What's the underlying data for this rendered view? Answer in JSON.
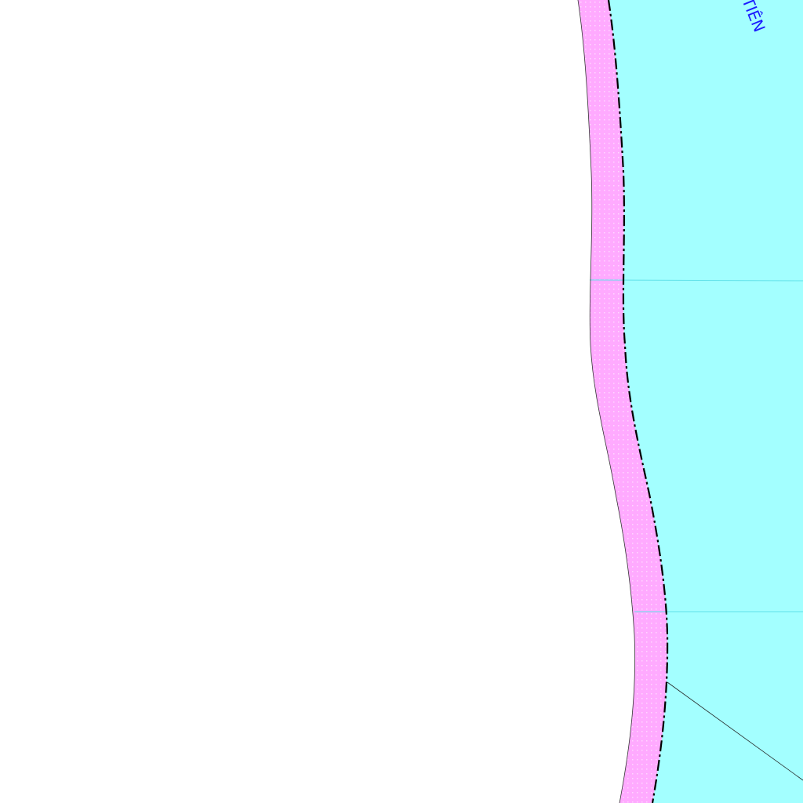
{
  "map": {
    "labels": {
      "river_name_fragment": "TIÊN"
    },
    "colors": {
      "background": "#ffffff",
      "water": "#a3ffff",
      "bank_strip": "#ffaaff",
      "bank_strip_dots": "#ffdcff",
      "grid_line": "#5fe0e8",
      "boundary_line": "#000000",
      "label_text": "#1a1aff"
    },
    "features": [
      "white-land-area",
      "water-body",
      "pink-bank-strip",
      "dash-dot-boundary",
      "grid-lines",
      "thin-diagonal-line"
    ]
  }
}
